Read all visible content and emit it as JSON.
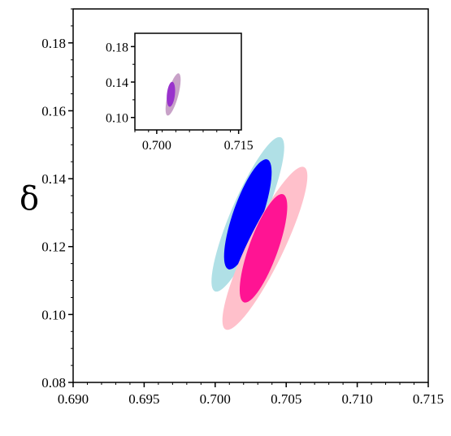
{
  "chart_data": [
    {
      "type": "contour",
      "title": "",
      "xlabel": "",
      "ylabel": "δ",
      "xlim": [
        0.69,
        0.715
      ],
      "ylim": [
        0.08,
        0.19
      ],
      "xticks": [
        "0.690",
        "0.695",
        "0.700",
        "0.705",
        "0.710",
        "0.715"
      ],
      "yticks": [
        "0.08",
        "0.10",
        "0.12",
        "0.14",
        "0.16",
        "0.18"
      ],
      "grid": false,
      "series": [
        {
          "colors": {
            "outer": "#b0e0e6",
            "inner": "#0000ff"
          },
          "outer": {
            "cx": 0.7023,
            "cy": 0.1295,
            "x_span": [
              0.6964,
              0.7082
            ],
            "y_span": [
              0.1188,
              0.1402
            ]
          },
          "inner": {
            "cx": 0.7023,
            "cy": 0.1295,
            "x_span": [
              0.6981,
              0.7063
            ],
            "y_span": [
              0.1225,
              0.1365
            ]
          }
        },
        {
          "colors": {
            "outer": "#ffc0cb",
            "inner": "#ff1493"
          },
          "outer": {
            "cx": 0.7035,
            "cy": 0.1195,
            "x_span": [
              0.6973,
              0.71
            ],
            "y_span": [
              0.107,
              0.132
            ]
          },
          "inner": {
            "cx": 0.7034,
            "cy": 0.1195,
            "x_span": [
              0.6995,
              0.7076
            ],
            "y_span": [
              0.113,
              0.127
            ]
          }
        }
      ]
    },
    {
      "type": "contour",
      "title": "",
      "inset": true,
      "xlim": [
        0.696,
        0.7155
      ],
      "ylim": [
        0.086,
        0.195
      ],
      "xticks": [
        "0.700",
        "0.715"
      ],
      "xtick_values": [
        0.7,
        0.715
      ],
      "yticks": [
        "0.10",
        "0.14",
        "0.18"
      ],
      "ytick_values": [
        0.1,
        0.14,
        0.18
      ],
      "series": [
        {
          "colors": {
            "outer": "#c8a2c8",
            "inner": "#9932cc"
          },
          "outer": {
            "cx": 0.703,
            "cy": 0.126,
            "x_span": [
              0.699,
              0.707
            ],
            "y_span": [
              0.1175,
              0.1345
            ]
          },
          "inner": {
            "cx": 0.7026,
            "cy": 0.1262,
            "x_span": [
              0.7003,
              0.7049
            ],
            "y_span": [
              0.1215,
              0.131
            ]
          }
        }
      ]
    }
  ]
}
